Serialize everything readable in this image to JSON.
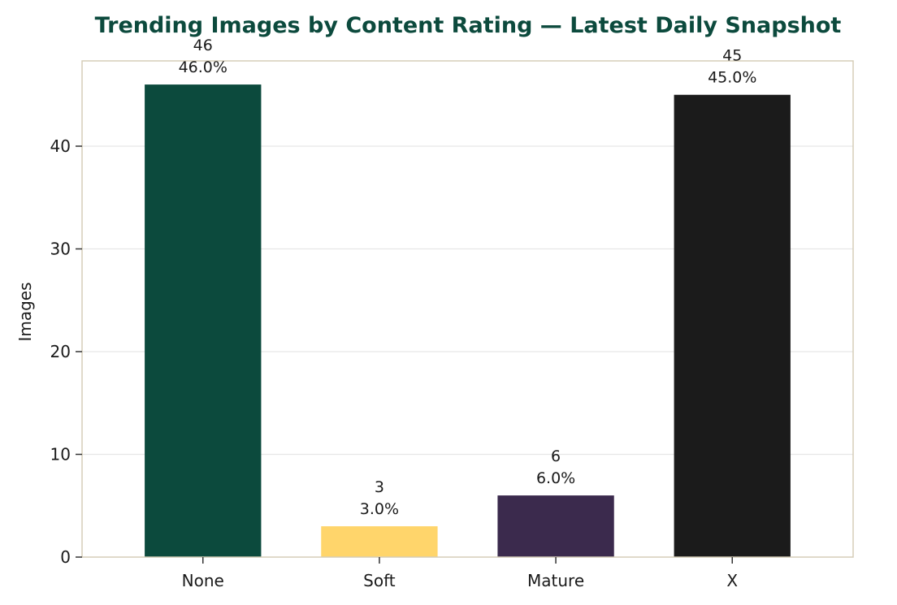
{
  "chart_data": {
    "type": "bar",
    "title": "Trending Images by Content Rating — Latest Daily Snapshot",
    "xlabel": "",
    "ylabel": "Images",
    "categories": [
      "None",
      "Soft",
      "Mature",
      "X"
    ],
    "values": [
      46,
      3,
      6,
      45
    ],
    "percent_labels": [
      "46.0%",
      "3.0%",
      "6.0%",
      "45.0%"
    ],
    "bar_colors": [
      "#0c4a3d",
      "#ffd56b",
      "#3b2a4d",
      "#1b1b1b"
    ],
    "ylim": [
      0,
      48.3
    ],
    "yticks": [
      0,
      10,
      20,
      30,
      40
    ],
    "grid": true,
    "legend": "none"
  },
  "colors": {
    "title": "#0c4a3d",
    "frame": "#d6cdb8",
    "grid": "#e6e6e6"
  }
}
